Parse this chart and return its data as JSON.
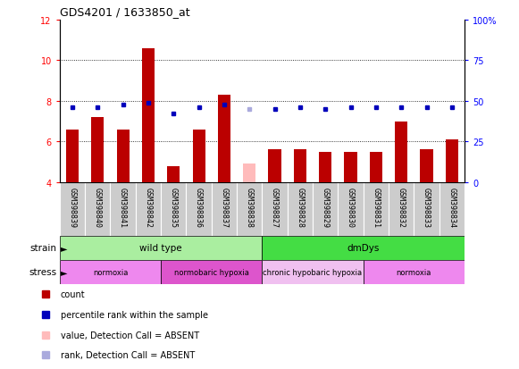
{
  "title": "GDS4201 / 1633850_at",
  "samples": [
    "GSM398839",
    "GSM398840",
    "GSM398841",
    "GSM398842",
    "GSM398835",
    "GSM398836",
    "GSM398837",
    "GSM398838",
    "GSM398827",
    "GSM398828",
    "GSM398829",
    "GSM398830",
    "GSM398831",
    "GSM398832",
    "GSM398833",
    "GSM398834"
  ],
  "bar_values": [
    6.6,
    7.2,
    6.6,
    10.6,
    4.8,
    6.6,
    8.3,
    4.9,
    5.6,
    5.6,
    5.5,
    5.5,
    5.5,
    7.0,
    5.6,
    6.1
  ],
  "bar_colors": [
    "#bb0000",
    "#bb0000",
    "#bb0000",
    "#bb0000",
    "#bb0000",
    "#bb0000",
    "#bb0000",
    "#ffbbbb",
    "#bb0000",
    "#bb0000",
    "#bb0000",
    "#bb0000",
    "#bb0000",
    "#bb0000",
    "#bb0000",
    "#bb0000"
  ],
  "dot_values": [
    7.7,
    7.7,
    7.8,
    7.9,
    7.4,
    7.7,
    7.8,
    7.6,
    7.6,
    7.7,
    7.6,
    7.7,
    7.7,
    7.7,
    7.7,
    7.7
  ],
  "dot_colors": [
    "#0000bb",
    "#0000bb",
    "#0000bb",
    "#0000bb",
    "#0000bb",
    "#0000bb",
    "#0000bb",
    "#aaaadd",
    "#0000bb",
    "#0000bb",
    "#0000bb",
    "#0000bb",
    "#0000bb",
    "#0000bb",
    "#0000bb",
    "#0000bb"
  ],
  "ylim_left": [
    4,
    12
  ],
  "yticks_left": [
    4,
    6,
    8,
    10,
    12
  ],
  "right_tick_positions": [
    4,
    6,
    8,
    10,
    12
  ],
  "right_tick_labels": [
    "0",
    "25",
    "50",
    "75",
    "100%"
  ],
  "strain_labels": [
    {
      "text": "wild type",
      "start": 0,
      "end": 8,
      "color": "#aaeea0"
    },
    {
      "text": "dmDys",
      "start": 8,
      "end": 16,
      "color": "#44dd44"
    }
  ],
  "stress_labels": [
    {
      "text": "normoxia",
      "start": 0,
      "end": 4,
      "color": "#ee88ee"
    },
    {
      "text": "normobaric hypoxia",
      "start": 4,
      "end": 8,
      "color": "#dd55cc"
    },
    {
      "text": "chronic hypobaric hypoxia",
      "start": 8,
      "end": 12,
      "color": "#f0c0f0"
    },
    {
      "text": "normoxia",
      "start": 12,
      "end": 16,
      "color": "#ee88ee"
    }
  ],
  "legend_items": [
    {
      "label": "count",
      "color": "#bb0000"
    },
    {
      "label": "percentile rank within the sample",
      "color": "#0000bb"
    },
    {
      "label": "value, Detection Call = ABSENT",
      "color": "#ffbbbb"
    },
    {
      "label": "rank, Detection Call = ABSENT",
      "color": "#aaaadd"
    }
  ],
  "bar_bottom": 4,
  "bar_width": 0.5,
  "dot_size": 16,
  "gridline_y": [
    6,
    8,
    10
  ],
  "tick_label_fontsize": 6,
  "title_fontsize": 9
}
